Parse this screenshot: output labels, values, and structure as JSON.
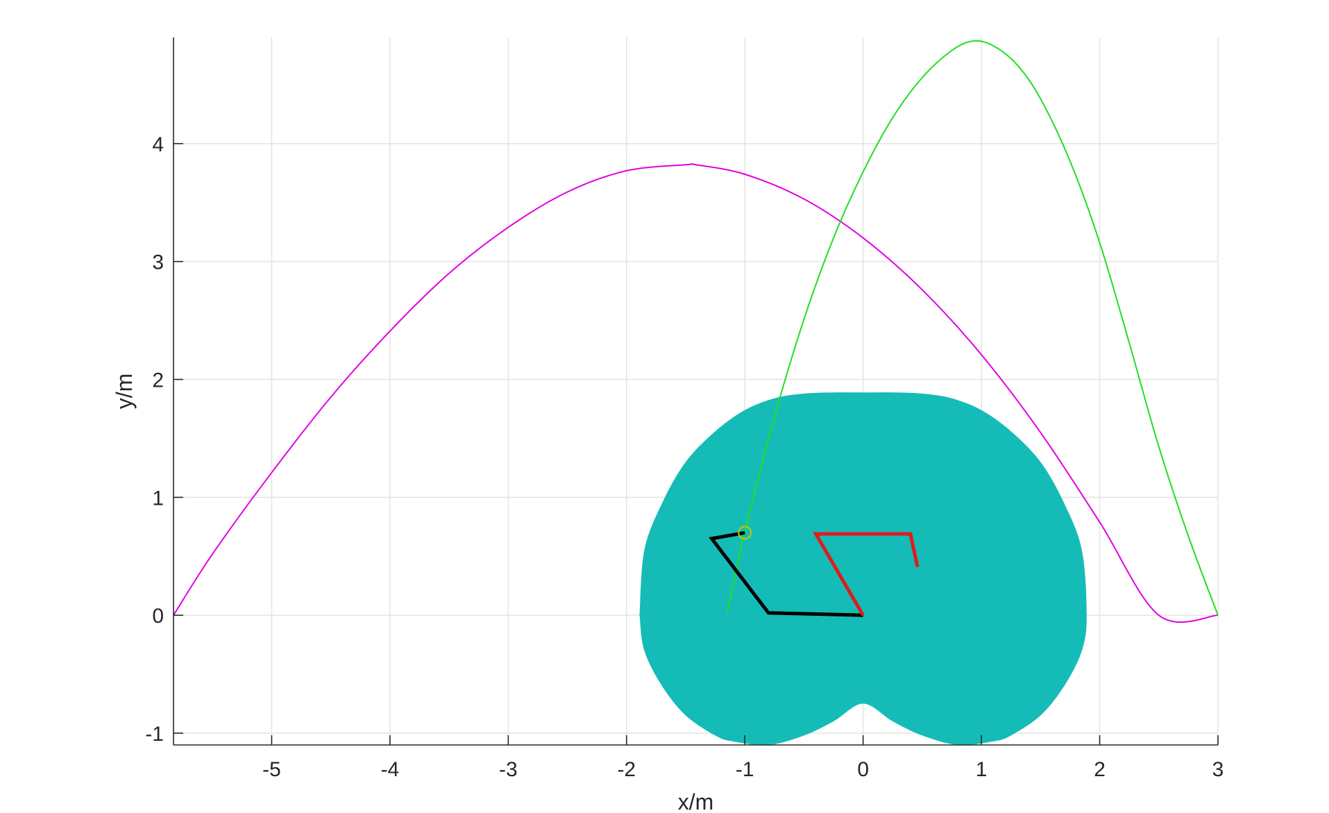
{
  "chart_data": {
    "type": "line",
    "title": "",
    "xlabel": "x/m",
    "ylabel": "y/m",
    "xlim": [
      -5.83,
      3
    ],
    "ylim": [
      -1.1,
      4.9
    ],
    "xticks": [
      -5,
      -4,
      -3,
      -2,
      -1,
      0,
      1,
      2,
      3
    ],
    "yticks": [
      -1,
      0,
      1,
      2,
      3,
      4
    ],
    "grid": true,
    "legend": "none",
    "series": [
      {
        "type": "line",
        "color": "#e000e0",
        "x": [
          -5.83,
          -5.5,
          -5,
          -4.5,
          -4,
          -3.5,
          -3,
          -2.5,
          -2,
          -1.5,
          -1.41,
          -1,
          -0.5,
          0,
          0.5,
          1,
          1.5,
          2,
          2.5,
          3
        ],
        "y": [
          0.0,
          0.52,
          1.21,
          1.85,
          2.41,
          2.9,
          3.29,
          3.59,
          3.77,
          3.82,
          3.82,
          3.74,
          3.53,
          3.2,
          2.76,
          2.21,
          1.55,
          0.79,
          0.0,
          0.0
        ]
      },
      {
        "type": "line",
        "color": "#22dd22",
        "x": [
          -1.15,
          -1,
          -0.75,
          -0.5,
          -0.25,
          0,
          0.25,
          0.5,
          0.75,
          0.93,
          1.1,
          1.3,
          1.5,
          1.75,
          2,
          2.25,
          2.5,
          2.75,
          3
        ],
        "y": [
          0.02,
          0.71,
          1.68,
          2.51,
          3.2,
          3.76,
          4.22,
          4.56,
          4.79,
          4.87,
          4.83,
          4.67,
          4.38,
          3.85,
          3.16,
          2.31,
          1.43,
          0.67,
          0.0
        ]
      }
    ],
    "workspace": {
      "type": "area",
      "color": "#15bcb7",
      "boundary_x": [
        -1.89,
        -1.85,
        -1.7,
        -1.5,
        -1.25,
        -1.0,
        -0.75,
        -0.5,
        -0.25,
        0.0,
        0.25,
        0.5,
        0.75,
        1.0,
        1.25,
        1.5,
        1.7,
        1.85,
        1.89,
        1.85,
        1.7,
        1.5,
        1.25,
        1.1,
        0.8,
        0.5,
        0.25,
        0.0,
        -0.25,
        -0.5,
        -0.8,
        -1.1,
        -1.25,
        -1.5,
        -1.7,
        -1.85,
        -1.89
      ],
      "boundary_y": [
        0.0,
        0.55,
        0.95,
        1.3,
        1.56,
        1.74,
        1.84,
        1.88,
        1.89,
        1.89,
        1.89,
        1.88,
        1.84,
        1.74,
        1.56,
        1.3,
        0.95,
        0.55,
        0.0,
        -0.3,
        -0.6,
        -0.85,
        -1.02,
        -1.07,
        -1.1,
        -1.02,
        -0.9,
        -0.75,
        -0.9,
        -1.02,
        -1.1,
        -1.07,
        -1.02,
        -0.85,
        -0.6,
        -0.3,
        0.0
      ]
    },
    "arms": [
      {
        "color": "#000000",
        "x": [
          0.0,
          -0.8,
          -1.28,
          -1.0
        ],
        "y": [
          0.0,
          0.02,
          0.65,
          0.7
        ]
      },
      {
        "color": "#e01b1b",
        "x": [
          0.0,
          -0.4,
          0.4,
          0.46
        ],
        "y": [
          0.0,
          0.69,
          0.69,
          0.41
        ]
      }
    ],
    "markers": [
      {
        "color": "#c9c400",
        "x": -1.0,
        "y": 0.7
      }
    ]
  }
}
